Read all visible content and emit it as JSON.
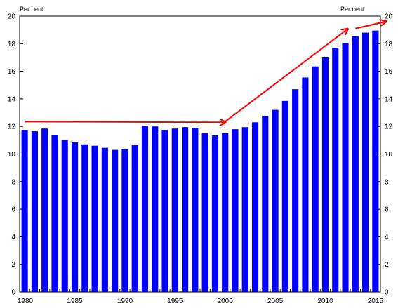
{
  "chart_data": {
    "type": "bar",
    "unit_label_left": "Per cent",
    "unit_label_right": "Per cent",
    "ylim": [
      0,
      20
    ],
    "y_ticks": [
      0,
      2,
      4,
      6,
      8,
      10,
      12,
      14,
      16,
      18,
      20
    ],
    "x_tick_labels": [
      "1980",
      "1985",
      "1990",
      "1995",
      "2000",
      "2005",
      "2010",
      "2015"
    ],
    "categories": [
      1980,
      1981,
      1982,
      1983,
      1984,
      1985,
      1986,
      1987,
      1988,
      1989,
      1990,
      1991,
      1992,
      1993,
      1994,
      1995,
      1996,
      1997,
      1998,
      1999,
      2000,
      2001,
      2002,
      2003,
      2004,
      2005,
      2006,
      2007,
      2008,
      2009,
      2010,
      2011,
      2012,
      2013,
      2014,
      2015
    ],
    "values": [
      11.75,
      11.65,
      11.85,
      11.4,
      11.0,
      10.85,
      10.7,
      10.6,
      10.45,
      10.3,
      10.35,
      10.65,
      12.05,
      12.0,
      11.75,
      11.85,
      11.95,
      11.9,
      11.5,
      11.35,
      11.5,
      11.8,
      11.95,
      12.3,
      12.75,
      13.2,
      13.85,
      14.7,
      15.55,
      16.35,
      17.05,
      17.7,
      18.05,
      18.55,
      18.8,
      18.95
    ],
    "bar_color": "#0000FF",
    "grid": false,
    "annotations": [
      {
        "type": "arrow",
        "color": "#FF0000",
        "from": {
          "x": 1980,
          "y": 12.35
        },
        "to": {
          "x": 2000,
          "y": 12.3
        }
      },
      {
        "type": "arrow",
        "color": "#FF0000",
        "from": {
          "x": 2000,
          "y": 12.35
        },
        "to": {
          "x": 2012.2,
          "y": 19.05
        }
      },
      {
        "type": "arrow",
        "color": "#FF0000",
        "from": {
          "x": 2013,
          "y": 19.1
        },
        "to": {
          "x": 2016,
          "y": 19.6
        }
      }
    ]
  }
}
